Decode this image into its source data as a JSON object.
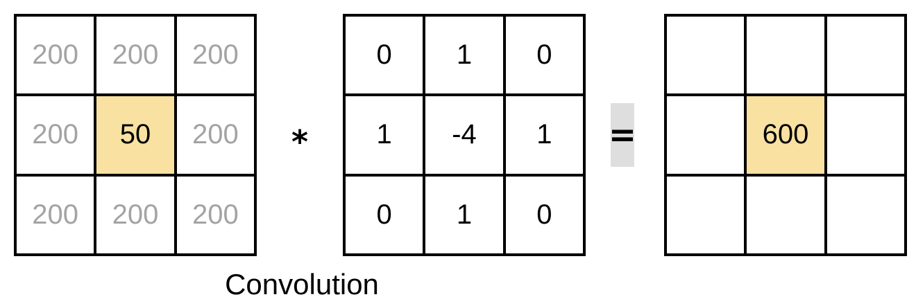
{
  "colors": {
    "highlight": "#f9e1a2",
    "faded_text": "#a3a3a3",
    "text": "#000000",
    "operator_bg": "#dedede"
  },
  "image_grid": {
    "cells": [
      "200",
      "200",
      "200",
      "200",
      "50",
      "200",
      "200",
      "200",
      "200"
    ],
    "highlight_index": 4
  },
  "kernel_grid": {
    "cells": [
      "0",
      "1",
      "0",
      "1",
      "-4",
      "1",
      "0",
      "1",
      "0"
    ]
  },
  "output_grid": {
    "cells": [
      "",
      "",
      "",
      "",
      "600",
      "",
      "",
      "",
      ""
    ],
    "highlight_index": 4
  },
  "operators": {
    "convolve": "*",
    "equals": "="
  },
  "caption": "Convolution"
}
